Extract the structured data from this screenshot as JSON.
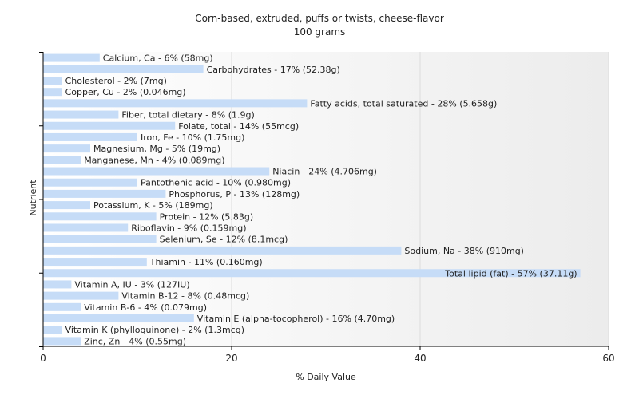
{
  "chart_data": {
    "type": "bar",
    "orientation": "horizontal",
    "title": "Corn-based, extruded, puffs or twists, cheese-flavor",
    "subtitle": "100 grams",
    "xlabel": "% Daily Value",
    "ylabel": "Nutrient",
    "xlim": [
      0,
      60
    ],
    "xticks": [
      0,
      20,
      40,
      60
    ],
    "grid": true,
    "bar_color": "#c6dcf7",
    "categories": [
      "Calcium, Ca",
      "Carbohydrates",
      "Cholesterol",
      "Copper, Cu",
      "Fatty acids, total saturated",
      "Fiber, total dietary",
      "Folate, total",
      "Iron, Fe",
      "Magnesium, Mg",
      "Manganese, Mn",
      "Niacin",
      "Pantothenic acid",
      "Phosphorus, P",
      "Potassium, K",
      "Protein",
      "Riboflavin",
      "Selenium, Se",
      "Sodium, Na",
      "Thiamin",
      "Total lipid (fat)",
      "Vitamin A, IU",
      "Vitamin B-12",
      "Vitamin B-6",
      "Vitamin E (alpha-tocopherol)",
      "Vitamin K (phylloquinone)",
      "Zinc, Zn"
    ],
    "values": [
      6,
      17,
      2,
      2,
      28,
      8,
      14,
      10,
      5,
      4,
      24,
      10,
      13,
      5,
      12,
      9,
      12,
      38,
      11,
      57,
      3,
      8,
      4,
      16,
      2,
      4
    ],
    "labels": [
      "Calcium, Ca - 6% (58mg)",
      "Carbohydrates - 17% (52.38g)",
      "Cholesterol - 2% (7mg)",
      "Copper, Cu - 2% (0.046mg)",
      "Fatty acids, total saturated - 28% (5.658g)",
      "Fiber, total dietary - 8% (1.9g)",
      "Folate, total - 14% (55mcg)",
      "Iron, Fe - 10% (1.75mg)",
      "Magnesium, Mg - 5% (19mg)",
      "Manganese, Mn - 4% (0.089mg)",
      "Niacin - 24% (4.706mg)",
      "Pantothenic acid - 10% (0.980mg)",
      "Phosphorus, P - 13% (128mg)",
      "Potassium, K - 5% (189mg)",
      "Protein - 12% (5.83g)",
      "Riboflavin - 9% (0.159mg)",
      "Selenium, Se - 12% (8.1mcg)",
      "Sodium, Na - 38% (910mg)",
      "Thiamin - 11% (0.160mg)",
      "Total lipid (fat) - 57% (37.11g)",
      "Vitamin A, IU - 3% (127IU)",
      "Vitamin B-12 - 8% (0.48mcg)",
      "Vitamin B-6 - 4% (0.079mg)",
      "Vitamin E (alpha-tocopherol) - 16% (4.70mg)",
      "Vitamin K (phylloquinone) - 2% (1.3mcg)",
      "Zinc, Zn - 4% (0.55mg)"
    ]
  }
}
